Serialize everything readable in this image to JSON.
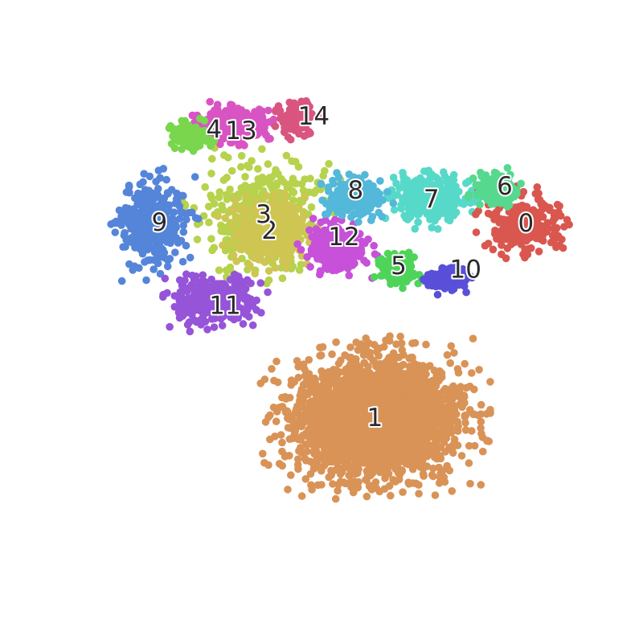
{
  "chart_data": {
    "type": "scatter",
    "title": "",
    "xlabel": "",
    "ylabel": "",
    "axes_visible": false,
    "grid": false,
    "legend": "none",
    "xlim": [
      0,
      100
    ],
    "ylim": [
      0,
      100
    ],
    "clusters": [
      {
        "label": "0",
        "color": "#d9574f",
        "center": [
          81.8,
          63.9
        ],
        "spread": [
          5.0,
          3.8
        ],
        "count": 260,
        "label_pos": [
          81.8,
          63.9
        ]
      },
      {
        "label": "1",
        "color": "#d99357",
        "center": [
          58.3,
          32.5
        ],
        "spread": [
          11.5,
          8.5
        ],
        "count": 2600,
        "label_pos": [
          58.3,
          32.5
        ]
      },
      {
        "label": "2",
        "color": "#cfc553",
        "center": [
          41.9,
          62.7
        ],
        "spread": [
          5.0,
          4.5
        ],
        "count": 380,
        "label_pos": [
          41.9,
          62.7
        ]
      },
      {
        "label": "3",
        "color": "#b7d24d",
        "center": [
          41.0,
          65.3
        ],
        "spread": [
          8.0,
          7.5
        ],
        "count": 420,
        "label_pos": [
          41.0,
          65.3
        ]
      },
      {
        "label": "4",
        "color": "#79d64d",
        "center": [
          29.5,
          78.0
        ],
        "spread": [
          2.6,
          2.0
        ],
        "count": 120,
        "label_pos": [
          33.3,
          79.0
        ]
      },
      {
        "label": "5",
        "color": "#4fd45a",
        "center": [
          62.0,
          56.2
        ],
        "spread": [
          2.6,
          2.2
        ],
        "count": 120,
        "label_pos": [
          62.0,
          57.0
        ]
      },
      {
        "label": "6",
        "color": "#56d98e",
        "center": [
          77.2,
          69.1
        ],
        "spread": [
          3.0,
          2.4
        ],
        "count": 140,
        "label_pos": [
          78.5,
          69.9
        ]
      },
      {
        "label": "7",
        "color": "#57d9c9",
        "center": [
          67.0,
          68.0
        ],
        "spread": [
          5.2,
          3.2
        ],
        "count": 300,
        "label_pos": [
          67.1,
          67.8
        ]
      },
      {
        "label": "8",
        "color": "#53b8d9",
        "center": [
          55.0,
          68.2
        ],
        "spread": [
          4.0,
          2.8
        ],
        "count": 200,
        "label_pos": [
          55.3,
          69.2
        ]
      },
      {
        "label": "9",
        "color": "#5585d9",
        "center": [
          24.0,
          64.0
        ],
        "spread": [
          4.5,
          6.0
        ],
        "count": 320,
        "label_pos": [
          24.8,
          64.0
        ]
      },
      {
        "label": "10",
        "color": "#5a4fd9",
        "center": [
          69.5,
          55.0
        ],
        "spread": [
          2.6,
          1.8
        ],
        "count": 110,
        "label_pos": [
          72.4,
          56.4
        ]
      },
      {
        "label": "11",
        "color": "#9654d9",
        "center": [
          33.5,
          51.5
        ],
        "spread": [
          5.5,
          3.4
        ],
        "count": 320,
        "label_pos": [
          35.0,
          50.6
        ]
      },
      {
        "label": "12",
        "color": "#c751d9",
        "center": [
          52.5,
          60.0
        ],
        "spread": [
          4.0,
          3.4
        ],
        "count": 260,
        "label_pos": [
          53.5,
          61.7
        ]
      },
      {
        "label": "13",
        "color": "#d954c3",
        "center": [
          36.0,
          80.0
        ],
        "spread": [
          5.5,
          2.6
        ],
        "count": 260,
        "label_pos": [
          37.5,
          78.8
        ]
      },
      {
        "label": "14",
        "color": "#d9557f",
        "center": [
          46.0,
          80.5
        ],
        "spread": [
          2.6,
          2.2
        ],
        "count": 150,
        "label_pos": [
          48.8,
          81.2
        ]
      }
    ]
  }
}
